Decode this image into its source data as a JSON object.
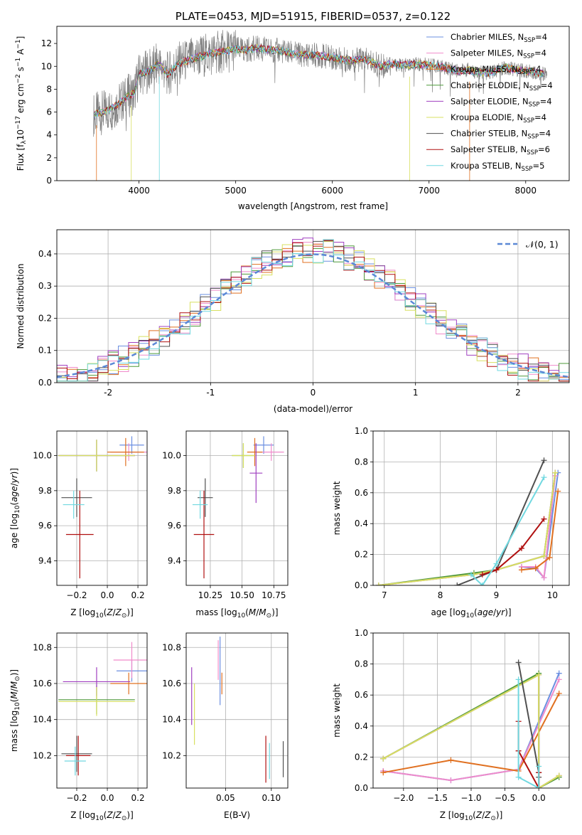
{
  "colors": {
    "chabrier_miles": "#6b8fe0",
    "salpeter_miles": "#f08bcb",
    "kroupa_miles": "#e07020",
    "chabrier_elodie": "#4e9a3a",
    "salpeter_elodie": "#a040c0",
    "kroupa_elodie": "#d8e060",
    "chabrier_stelib": "#505050",
    "salpeter_stelib": "#b01010",
    "kroupa_stelib": "#70d8e0",
    "gauss": "#5b88d6"
  },
  "chart_data": [
    {
      "type": "line",
      "title": "PLATE=0453, MJD=51915, FIBERID=0537, z=0.122",
      "xlabel": "wavelength [Angstrom, rest frame]",
      "ylabel": "Flux [fλ10⁻¹⁷ erg cm⁻² s⁻¹ A⁻¹]",
      "xlim": [
        3150,
        8450
      ],
      "ylim": [
        0,
        13.5
      ],
      "xticks": [
        4000,
        5000,
        6000,
        7000,
        8000
      ],
      "yticks": [
        0,
        2,
        4,
        6,
        8,
        10,
        12
      ],
      "grid": false,
      "legend_position": "right",
      "continuum": {
        "x": [
          3530,
          3600,
          3700,
          3800,
          3900,
          3950,
          4000,
          4100,
          4200,
          4300,
          4400,
          4500,
          4600,
          4700,
          4800,
          4900,
          5000,
          5100,
          5200,
          5300,
          5400,
          5500,
          5600,
          5700,
          5800,
          5900,
          6000,
          6100,
          6200,
          6300,
          6400,
          6500,
          6600,
          6700,
          6800,
          6900,
          7000,
          7100,
          7200,
          7300,
          7400,
          7500,
          7600,
          7700,
          7800,
          7900,
          8000,
          8100,
          8200
        ],
        "y": [
          5.8,
          5.9,
          6.2,
          6.8,
          7.5,
          7.6,
          9.3,
          9.6,
          10.2,
          9.3,
          10.2,
          10.5,
          10.8,
          11.0,
          11.2,
          11.3,
          11.5,
          11.4,
          11.6,
          11.5,
          11.4,
          11.3,
          11.1,
          11.0,
          11.0,
          10.9,
          10.8,
          10.6,
          10.5,
          10.6,
          10.4,
          10.0,
          10.2,
          10.1,
          10.1,
          10.2,
          10.1,
          10.0,
          9.8,
          9.6,
          9.7,
          9.5,
          9.4,
          9.6,
          9.9,
          9.7,
          9.6,
          9.5,
          9.3
        ]
      },
      "series": [
        {
          "name": "Chabrier MILES, N",
          "sub": "SSP",
          "suffix": "=4"
        },
        {
          "name": "Salpeter MILES, N",
          "sub": "SSP",
          "suffix": "=4"
        },
        {
          "name": "Kroupa MILES, N",
          "sub": "SSP",
          "suffix": "=4"
        },
        {
          "name": "Chabrier ELODIE, N",
          "sub": "SSP",
          "suffix": "=4"
        },
        {
          "name": "Salpeter ELODIE, N",
          "sub": "SSP",
          "suffix": "=4"
        },
        {
          "name": "Kroupa ELODIE, N",
          "sub": "SSP",
          "suffix": "=4"
        },
        {
          "name": "Chabrier STELIB, N",
          "sub": "SSP",
          "suffix": "=4"
        },
        {
          "name": "Salpeter STELIB, N",
          "sub": "SSP",
          "suffix": "=6"
        },
        {
          "name": "Kroupa STELIB, N",
          "sub": "SSP",
          "suffix": "=5"
        }
      ]
    },
    {
      "type": "line",
      "xlabel": "(data-model)/error",
      "ylabel": "Normed distribution",
      "xlim": [
        -2.5,
        2.5
      ],
      "ylim": [
        0,
        0.475
      ],
      "xticks": [
        -2,
        -1,
        0,
        1,
        2
      ],
      "yticks": [
        0.0,
        0.1,
        0.2,
        0.3,
        0.4
      ],
      "grid": true,
      "legend_position": "top-right",
      "legend": "𝒩(0, 1)",
      "gaussian": {
        "mean": 0,
        "sigma": 1
      }
    },
    {
      "type": "scatter",
      "xlabel": "Z [log₁₀(Z/Z⊙)]",
      "ylabel": "age  [log₁₀(age/yr)]",
      "xlim": [
        -0.33,
        0.26
      ],
      "ylim": [
        9.26,
        10.14
      ],
      "xticks": [
        -0.2,
        0.0,
        0.2
      ],
      "xtick_labels": [
        "−0.2",
        "0.0",
        "0.2"
      ],
      "yticks": [
        9.4,
        9.6,
        9.8,
        10.0
      ],
      "grid": true,
      "points": [
        {
          "s": "chabrier_miles",
          "x": 0.16,
          "y": 10.06,
          "xe": 0.08,
          "ye": 0.05
        },
        {
          "s": "salpeter_miles",
          "x": 0.14,
          "y": 10.02,
          "xe": 0.12,
          "ye": 0.05
        },
        {
          "s": "kroupa_miles",
          "x": 0.12,
          "y": 10.02,
          "xe": 0.12,
          "ye": 0.08
        },
        {
          "s": "chabrier_elodie",
          "x": -0.07,
          "y": 10.0,
          "xe": 0.25,
          "ye": 0.09
        },
        {
          "s": "salpeter_elodie",
          "x": -0.07,
          "y": 10.0,
          "xe": 0.25,
          "ye": 0.09
        },
        {
          "s": "kroupa_elodie",
          "x": -0.07,
          "y": 10.0,
          "xe": 0.25,
          "ye": 0.09
        },
        {
          "s": "chabrier_stelib",
          "x": -0.2,
          "y": 9.76,
          "xe": 0.1,
          "ye": 0.11
        },
        {
          "s": "salpeter_stelib",
          "x": -0.18,
          "y": 9.55,
          "xe": 0.09,
          "ye": 0.25
        },
        {
          "s": "kroupa_stelib",
          "x": -0.22,
          "y": 9.72,
          "xe": 0.07,
          "ye": 0.08
        }
      ]
    },
    {
      "type": "scatter",
      "xlabel": "mass [log₁₀(M/M⊙)]",
      "xlim": [
        10.06,
        10.86
      ],
      "ylim": [
        9.26,
        10.14
      ],
      "xticks": [
        10.25,
        10.5,
        10.75
      ],
      "xtick_labels": [
        "10.25",
        "10.50",
        "10.75"
      ],
      "yticks": [
        9.4,
        9.6,
        9.8,
        10.0
      ],
      "grid": true,
      "points": [
        {
          "s": "chabrier_miles",
          "x": 10.67,
          "y": 10.06,
          "xe": 0.08,
          "ye": 0.05
        },
        {
          "s": "salpeter_miles",
          "x": 10.73,
          "y": 10.02,
          "xe": 0.1,
          "ye": 0.05
        },
        {
          "s": "kroupa_miles",
          "x": 10.6,
          "y": 10.02,
          "xe": 0.06,
          "ye": 0.08
        },
        {
          "s": "chabrier_elodie",
          "x": 10.51,
          "y": 10.0,
          "xe": 0.09,
          "ye": 0.07
        },
        {
          "s": "salpeter_elodie",
          "x": 10.61,
          "y": 9.9,
          "xe": 0.05,
          "ye": 0.17
        },
        {
          "s": "kroupa_elodie",
          "x": 10.51,
          "y": 10.0,
          "xe": 0.09,
          "ye": 0.07
        },
        {
          "s": "chabrier_stelib",
          "x": 10.21,
          "y": 9.76,
          "xe": 0.06,
          "ye": 0.11
        },
        {
          "s": "salpeter_stelib",
          "x": 10.2,
          "y": 9.55,
          "xe": 0.08,
          "ye": 0.25
        },
        {
          "s": "kroupa_stelib",
          "x": 10.17,
          "y": 9.72,
          "xe": 0.06,
          "ye": 0.08
        }
      ]
    },
    {
      "type": "line",
      "xlabel": "age  [log₁₀(age/yr)]",
      "ylabel": "mass weight",
      "xlim": [
        6.8,
        10.3
      ],
      "ylim": [
        0,
        1.0
      ],
      "xticks": [
        7,
        8,
        9,
        10
      ],
      "yticks": [
        0.0,
        0.2,
        0.4,
        0.6,
        0.8,
        1.0
      ],
      "grid": true,
      "series": [
        {
          "s": "chabrier_miles",
          "x": [
            9.45,
            9.7,
            9.85,
            10.1
          ],
          "y": [
            0.12,
            0.11,
            0.05,
            0.73
          ]
        },
        {
          "s": "salpeter_miles",
          "x": [
            9.45,
            9.7,
            9.85,
            10.05
          ],
          "y": [
            0.12,
            0.12,
            0.05,
            0.71
          ]
        },
        {
          "s": "kroupa_miles",
          "x": [
            9.45,
            9.7,
            9.95,
            10.1
          ],
          "y": [
            0.1,
            0.11,
            0.18,
            0.61
          ]
        },
        {
          "s": "chabrier_elodie",
          "x": [
            6.9,
            8.6,
            9.0,
            9.85,
            10.05
          ],
          "y": [
            0.0,
            0.08,
            0.1,
            0.19,
            0.73
          ]
        },
        {
          "s": "salpeter_elodie",
          "x": [
            6.9,
            8.6,
            9.0,
            9.85,
            10.05
          ],
          "y": [
            0.0,
            0.07,
            0.1,
            0.19,
            0.73
          ]
        },
        {
          "s": "kroupa_elodie",
          "x": [
            6.9,
            8.6,
            9.0,
            9.85,
            10.05
          ],
          "y": [
            0.0,
            0.07,
            0.1,
            0.19,
            0.73
          ]
        },
        {
          "s": "chabrier_stelib",
          "x": [
            8.3,
            9.0,
            9.85
          ],
          "y": [
            0.0,
            0.1,
            0.81
          ]
        },
        {
          "s": "salpeter_stelib",
          "x": [
            8.75,
            9.0,
            9.45,
            9.85
          ],
          "y": [
            0.07,
            0.1,
            0.24,
            0.43
          ]
        },
        {
          "s": "kroupa_stelib",
          "x": [
            8.55,
            8.75,
            9.0,
            9.85
          ],
          "y": [
            0.07,
            0.0,
            0.14,
            0.7
          ]
        }
      ]
    },
    {
      "type": "scatter",
      "xlabel": "Z [log₁₀(Z/Z⊙)]",
      "ylabel": "mass [log₁₀(M/M⊙)]",
      "xlim": [
        -0.33,
        0.26
      ],
      "ylim": [
        10.02,
        10.88
      ],
      "xticks": [
        -0.2,
        0.0,
        0.2
      ],
      "xtick_labels": [
        "−0.2",
        "0.0",
        "0.2"
      ],
      "yticks": [
        10.2,
        10.4,
        10.6,
        10.8
      ],
      "grid": true,
      "points": [
        {
          "s": "chabrier_miles",
          "x": 0.16,
          "y": 10.67,
          "xe": 0.1,
          "ye": 0.06
        },
        {
          "s": "salpeter_miles",
          "x": 0.16,
          "y": 10.73,
          "xe": 0.12,
          "ye": 0.1
        },
        {
          "s": "kroupa_miles",
          "x": 0.14,
          "y": 10.6,
          "xe": 0.12,
          "ye": 0.06
        },
        {
          "s": "chabrier_elodie",
          "x": -0.07,
          "y": 10.51,
          "xe": 0.25,
          "ye": 0.08
        },
        {
          "s": "salpeter_elodie",
          "x": -0.07,
          "y": 10.61,
          "xe": 0.22,
          "ye": 0.08
        },
        {
          "s": "kroupa_elodie",
          "x": -0.07,
          "y": 10.5,
          "xe": 0.25,
          "ye": 0.08
        },
        {
          "s": "chabrier_stelib",
          "x": -0.2,
          "y": 10.21,
          "xe": 0.1,
          "ye": 0.1
        },
        {
          "s": "salpeter_stelib",
          "x": -0.19,
          "y": 10.2,
          "xe": 0.08,
          "ye": 0.11
        },
        {
          "s": "kroupa_stelib",
          "x": -0.21,
          "y": 10.17,
          "xe": 0.07,
          "ye": 0.08
        }
      ]
    },
    {
      "type": "scatter",
      "xlabel": "E(B-V)",
      "xlim": [
        0.007,
        0.118
      ],
      "ylim": [
        10.02,
        10.88
      ],
      "xticks": [
        0.05,
        0.1
      ],
      "xtick_labels": [
        "0.05",
        "0.10"
      ],
      "yticks": [
        10.2,
        10.4,
        10.6,
        10.8
      ],
      "grid": true,
      "points": [
        {
          "s": "chabrier_miles",
          "x": 0.044,
          "y": 10.67,
          "xe": 0,
          "ye": 0.19
        },
        {
          "s": "salpeter_miles",
          "x": 0.042,
          "y": 10.73,
          "xe": 0,
          "ye": 0.11
        },
        {
          "s": "kroupa_miles",
          "x": 0.046,
          "y": 10.6,
          "xe": 0,
          "ye": 0.06
        },
        {
          "s": "salpeter_elodie",
          "x": 0.013,
          "y": 10.53,
          "xe": 0,
          "ye": 0.16
        },
        {
          "s": "kroupa_elodie",
          "x": 0.016,
          "y": 10.43,
          "xe": 0,
          "ye": 0.17
        },
        {
          "s": "chabrier_stelib",
          "x": 0.113,
          "y": 10.18,
          "xe": 0,
          "ye": 0.1
        },
        {
          "s": "salpeter_stelib",
          "x": 0.094,
          "y": 10.18,
          "xe": 0,
          "ye": 0.13
        },
        {
          "s": "kroupa_stelib",
          "x": 0.098,
          "y": 10.17,
          "xe": 0,
          "ye": 0.1
        }
      ]
    },
    {
      "type": "line",
      "xlabel": "Z [log₁₀(Z/Z⊙)]",
      "ylabel": "mass weight",
      "xlim": [
        -2.45,
        0.45
      ],
      "ylim": [
        0,
        1.0
      ],
      "xticks": [
        -2.0,
        -1.5,
        -1.0,
        -0.5,
        0.0
      ],
      "xtick_labels": [
        "−2.0",
        "−1.5",
        "−1.0",
        "−0.5",
        "0.0"
      ],
      "yticks": [
        0.0,
        0.2,
        0.4,
        0.6,
        0.8,
        1.0
      ],
      "grid": true,
      "series": [
        {
          "s": "chabrier_miles",
          "x": [
            -2.3,
            -1.3,
            -0.3,
            0.3
          ],
          "y": [
            0.11,
            0.05,
            0.12,
            0.74
          ]
        },
        {
          "s": "salpeter_miles",
          "x": [
            -2.3,
            -1.3,
            -0.3,
            0.3
          ],
          "y": [
            0.11,
            0.05,
            0.12,
            0.7
          ]
        },
        {
          "s": "kroupa_miles",
          "x": [
            -2.3,
            -1.3,
            -0.3,
            0.3
          ],
          "y": [
            0.1,
            0.18,
            0.11,
            0.61
          ]
        },
        {
          "s": "chabrier_elodie",
          "x": [
            -2.3,
            0.0,
            0.0,
            0.3
          ],
          "y": [
            0.19,
            0.74,
            0.0,
            0.07
          ]
        },
        {
          "s": "salpeter_elodie",
          "x": [
            -2.3,
            0.0,
            0.0,
            0.3
          ],
          "y": [
            0.19,
            0.73,
            0.0,
            0.08
          ]
        },
        {
          "s": "kroupa_elodie",
          "x": [
            -2.3,
            0.0,
            0.0,
            0.3
          ],
          "y": [
            0.19,
            0.73,
            0.0,
            0.08
          ]
        },
        {
          "s": "chabrier_stelib",
          "x": [
            -0.3,
            0.0,
            0.0
          ],
          "y": [
            0.81,
            0.1,
            0.07
          ]
        },
        {
          "s": "salpeter_stelib",
          "x": [
            -0.3,
            -0.3,
            0.0,
            0.0
          ],
          "y": [
            0.43,
            0.24,
            0.0,
            0.1
          ]
        },
        {
          "s": "kroupa_stelib",
          "x": [
            -0.3,
            -0.3,
            0.0,
            0.0
          ],
          "y": [
            0.7,
            0.07,
            0.0,
            0.14
          ]
        }
      ]
    }
  ]
}
